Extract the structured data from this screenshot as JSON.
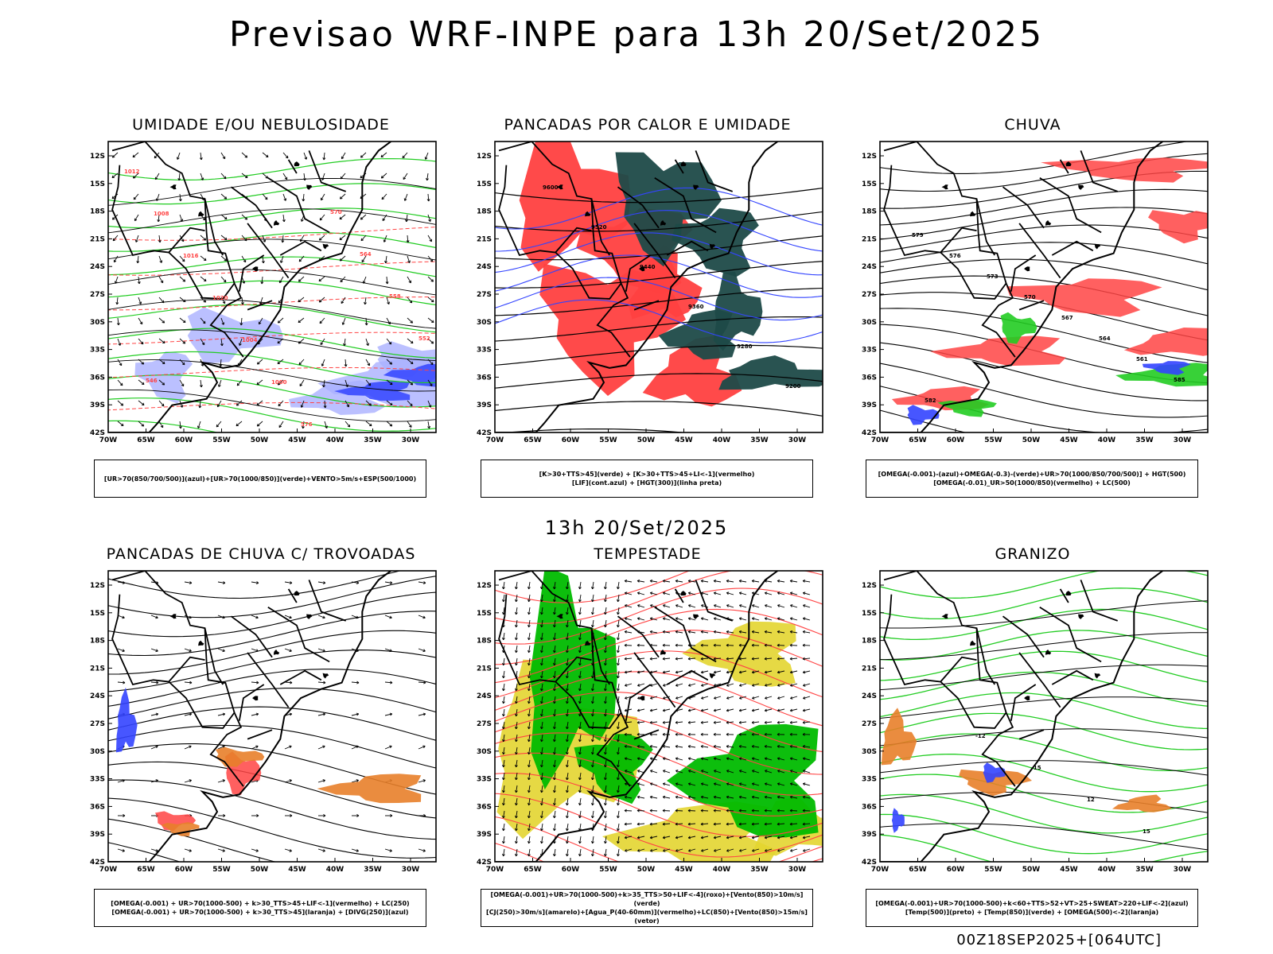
{
  "header": {
    "title": "Previsao WRF-INPE  para 13h 20/Set/2025",
    "mid_title": "13h 20/Set/2025",
    "footer": "00Z18SEP2025+[064UTC]"
  },
  "axes": {
    "lat_labels": [
      "12S",
      "15S",
      "18S",
      "21S",
      "24S",
      "27S",
      "30S",
      "33S",
      "36S",
      "39S",
      "42S"
    ],
    "lon_labels": [
      "70W",
      "65W",
      "60W",
      "55W",
      "50W",
      "45W",
      "40W",
      "35W",
      "30W"
    ]
  },
  "colors": {
    "red": "#ff4444",
    "green": "#22cc22",
    "blue": "#3344ff",
    "lavender": "#aab0ff",
    "dark_teal": "#1e4a48",
    "yellow": "#e3d530",
    "orange": "#e8802a",
    "bright_green": "#00bb00"
  },
  "panels": [
    {
      "title": "UMIDADE E/OU NEBULOSIDADE",
      "legend": [
        "[UR>70(850/700/500)](azul)+[UR>70(1000/850)](verde)+VENTO>5m/s+ESP(500/1000)"
      ],
      "contour_labels": [
        "1012",
        "1008",
        "1016",
        "1020",
        "1004",
        "1000",
        "576",
        "570",
        "564",
        "558",
        "552",
        "546"
      ]
    },
    {
      "title": "PANCADAS POR CALOR E UMIDADE",
      "legend": [
        "[K>30+TTS>45](verde) + [K>30+TTS>45+LI<-1](vermelho)",
        "[LIF](cont.azul) + [HGT(300)](linha preta)"
      ],
      "contour_labels": [
        "9600",
        "9520",
        "9440",
        "9360",
        "9280",
        "9200"
      ]
    },
    {
      "title": "CHUVA",
      "legend": [
        "[OMEGA(-0.001)-(azul)+OMEGA(-0.3)-(verde)+UR>70(1000/850/700/500)] + HGT(500)",
        "[OMEGA(-0.01)_UR>50(1000/850)(vermelho) + LC(500)"
      ],
      "contour_labels": [
        "579",
        "576",
        "573",
        "570",
        "567",
        "564",
        "561",
        "585",
        "582"
      ]
    },
    {
      "title": "PANCADAS DE CHUVA C/ TROVOADAS",
      "legend": [
        "[OMEGA(-0.001) + UR>70(1000-500) + k>30_TTS>45+LIF<-1](vermelho) + LC(250)",
        "[OMEGA(-0.001) + UR>70(1000-500) + k>30_TTS>45](laranja) + [DIVG(250)](azul)"
      ],
      "contour_labels": []
    },
    {
      "title": "TEMPESTADE",
      "legend": [
        "[OMEGA(-0.001)+UR>70(1000-500)+k>35_TTS>50+LIF<-4](roxo)+[Vento(850)>10m/s](verde)",
        "[CJ(250)>30m/s](amarelo)+[Agua_P(40-60mm)](vermelho)+LC(850)+[Vento(850)>15m/s](vetor)"
      ],
      "contour_labels": []
    },
    {
      "title": "GRANIZO",
      "legend": [
        "[OMEGA(-0.001)+UR>70(1000-500)+k<60+TTS>52+VT>25+SWEAT>220+LIF<-2](azul)",
        "[Temp(500)](preto) + [Temp(850)](verde) + [OMEGA(500)<-2](laranja)"
      ],
      "contour_labels": [
        "-12",
        "-15",
        "12",
        "15"
      ]
    }
  ]
}
